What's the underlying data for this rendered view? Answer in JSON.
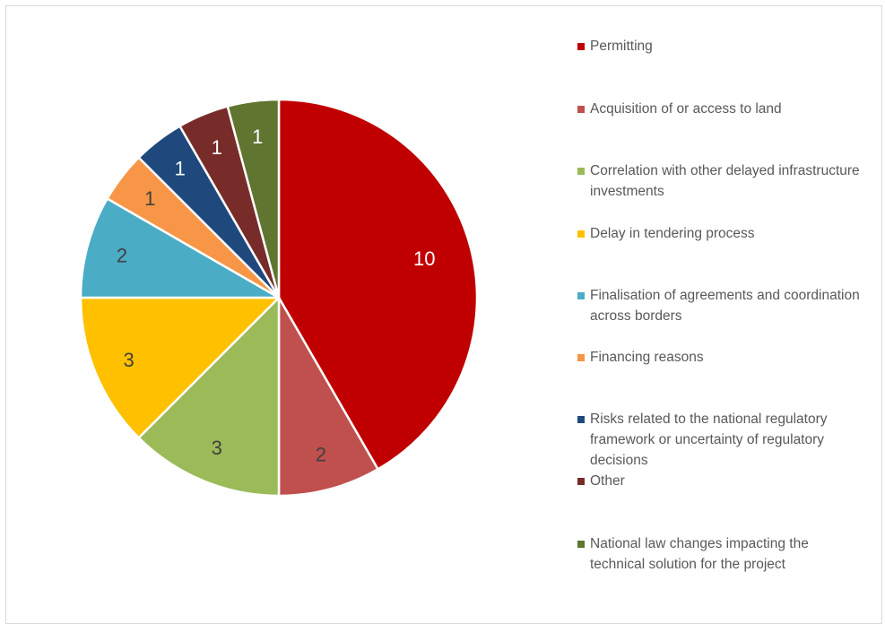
{
  "chart_data": {
    "type": "pie",
    "title": "",
    "categories": [
      "Permitting",
      "Acquisition of or access to land",
      "Correlation with other delayed infrastructure investments",
      "Delay in tendering process",
      "Finalisation of agreements and coordination across borders",
      "Financing reasons",
      "Risks related to the national regulatory framework or uncertainty of regulatory decisions",
      "Other",
      "National law changes impacting the technical solution for the project"
    ],
    "values": [
      10,
      2,
      3,
      3,
      2,
      1,
      1,
      1,
      1
    ],
    "data_labels": [
      "10",
      "2",
      "3",
      "3",
      "2",
      "1",
      "1",
      "1",
      "1"
    ],
    "colors": [
      "#C00000",
      "#C0504D",
      "#9BBB59",
      "#FFC000",
      "#4BACC6",
      "#F79646",
      "#1F497D",
      "#772C2A",
      "#5F7530"
    ],
    "label_colors": [
      "#FFFFFF",
      "#404040",
      "#404040",
      "#404040",
      "#404040",
      "#404040",
      "#FFFFFF",
      "#FFFFFF",
      "#FFFFFF"
    ],
    "legend_position": "right",
    "start": "top",
    "direction": "clockwise"
  },
  "legend": {
    "items": [
      "Permitting",
      "Acquisition of or access to land",
      "Correlation with other delayed infrastructure investments",
      "Delay in tendering process",
      "Finalisation of agreements and coordination across borders",
      "Financing reasons",
      "Risks related to the national regulatory framework or uncertainty of regulatory decisions",
      "Other",
      "National law changes impacting the technical solution for the project"
    ]
  }
}
